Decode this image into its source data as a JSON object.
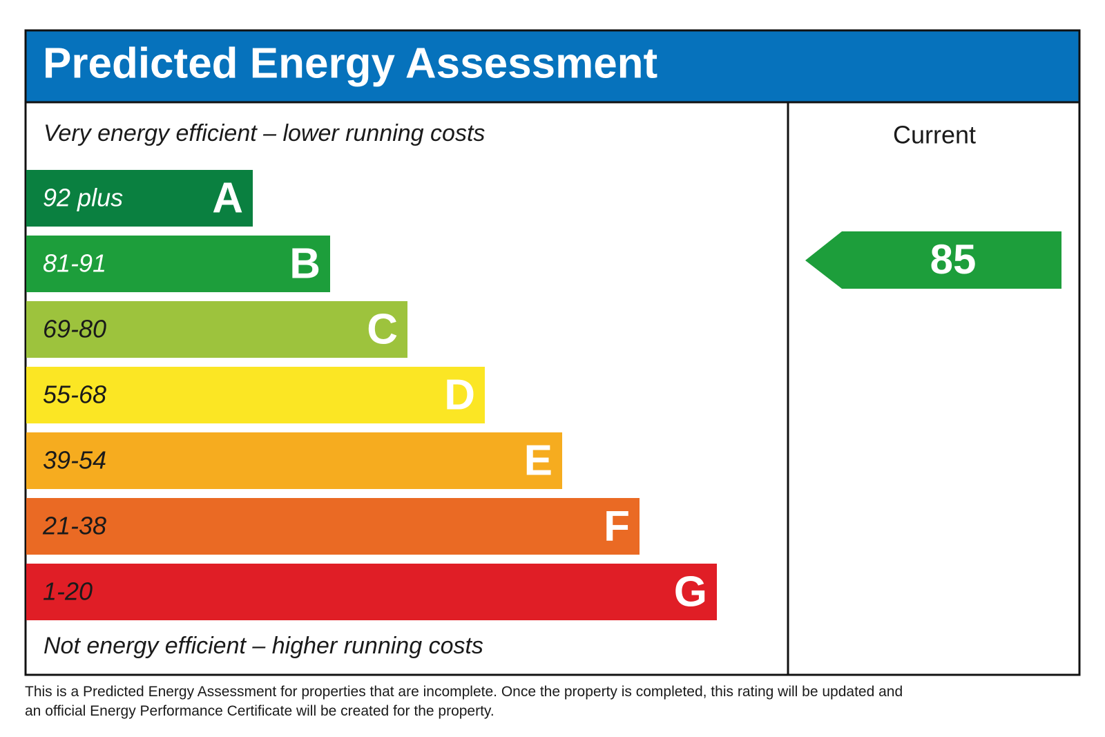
{
  "header": {
    "title": "Predicted Energy Assessment"
  },
  "scale": {
    "top_label": "Very energy efficient – lower running costs",
    "bottom_label": "Not energy efficient – higher running costs",
    "bands": [
      {
        "range": "92 plus",
        "letter": "A",
        "color": "#0a8040",
        "text_color": "#ffffff"
      },
      {
        "range": "81-91",
        "letter": "B",
        "color": "#1d9e3b",
        "text_color": "#ffffff"
      },
      {
        "range": "69-80",
        "letter": "C",
        "color": "#9dc33d",
        "text_color": "#1a1a1a"
      },
      {
        "range": "55-68",
        "letter": "D",
        "color": "#fbe624",
        "text_color": "#1a1a1a"
      },
      {
        "range": "39-54",
        "letter": "E",
        "color": "#f6ac1f",
        "text_color": "#1a1a1a"
      },
      {
        "range": "21-38",
        "letter": "F",
        "color": "#ea6a24",
        "text_color": "#1a1a1a"
      },
      {
        "range": "1-20",
        "letter": "G",
        "color": "#e01e26",
        "text_color": "#1a1a1a"
      }
    ]
  },
  "current": {
    "header": "Current",
    "value": "85",
    "color": "#1d9e3b"
  },
  "footnote": "This is a Predicted Energy Assessment for properties that are incomplete. Once the property is completed, this rating will be updated and an official Energy Performance Certificate will be created for the property."
}
